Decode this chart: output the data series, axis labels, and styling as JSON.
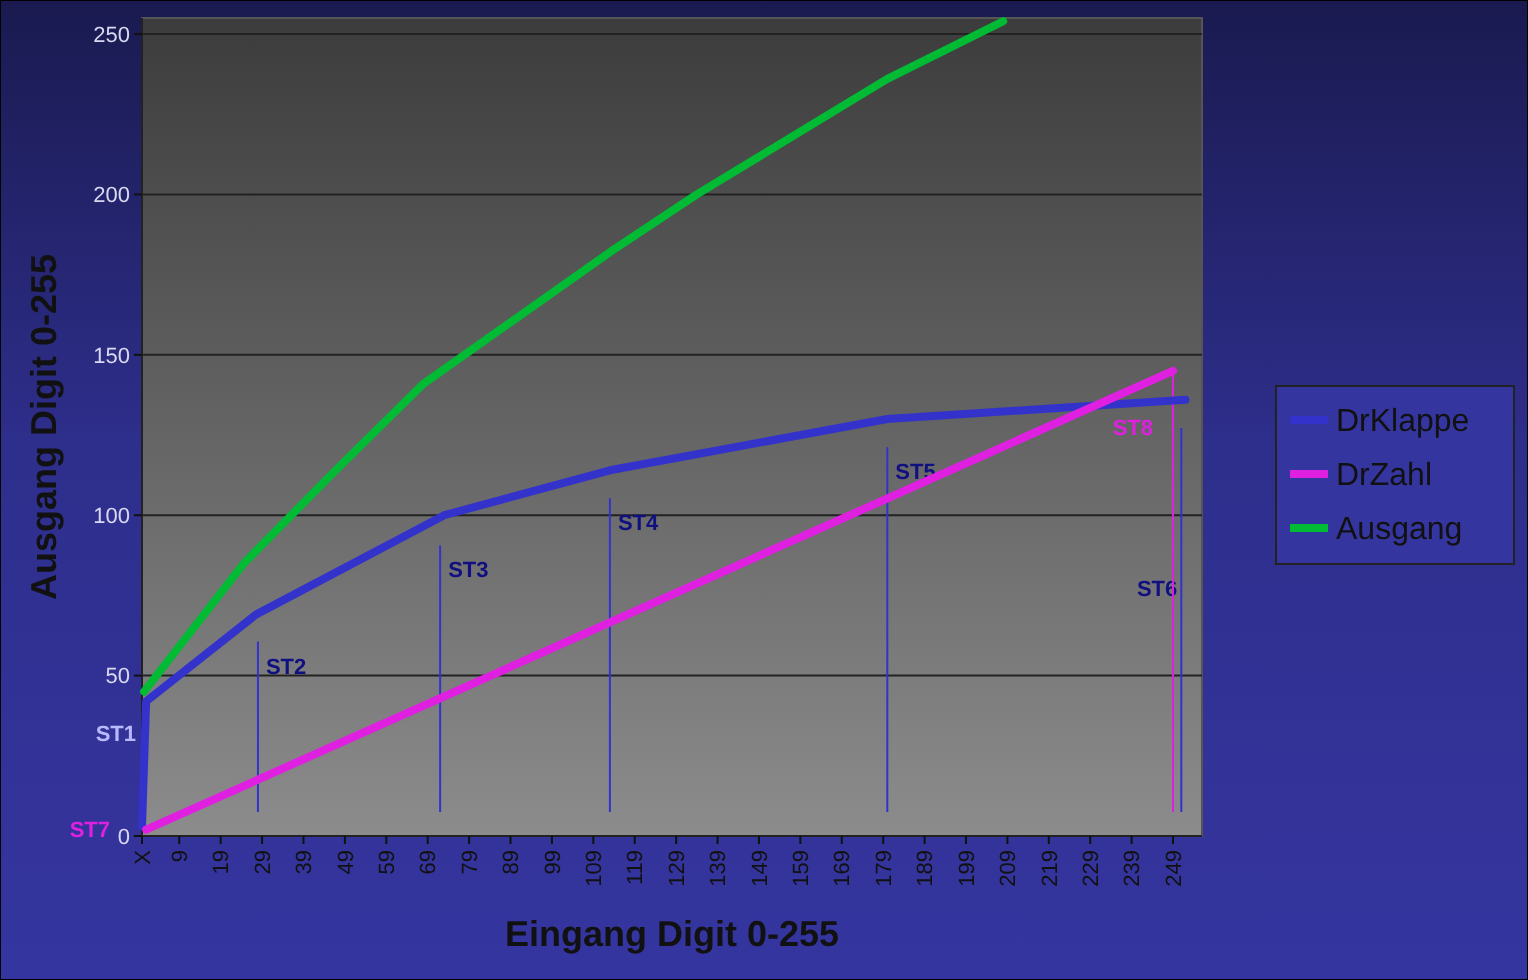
{
  "chart_data": {
    "type": "line",
    "xlabel": "Eingang Digit 0-255",
    "ylabel": "Ausgang Digit 0-255",
    "xlim": [
      0,
      256
    ],
    "ylim": [
      0,
      255
    ],
    "xticks": [
      {
        "value": 0,
        "label": "X"
      },
      9,
      19,
      29,
      39,
      49,
      59,
      69,
      79,
      89,
      99,
      109,
      119,
      129,
      139,
      149,
      159,
      169,
      179,
      189,
      199,
      209,
      219,
      229,
      239,
      249
    ],
    "yticks": [
      0,
      50,
      100,
      150,
      200,
      250
    ],
    "grid": "y",
    "legend": "right",
    "series": [
      {
        "name": "DrKlappe",
        "color": "#3333cc",
        "x": [
          0,
          1,
          27.5,
          73,
          113,
          180,
          252
        ],
        "values": [
          3,
          42,
          69,
          100,
          114,
          130,
          136
        ]
      },
      {
        "name": "DrZahl",
        "color": "#e020e0",
        "x": [
          1,
          249
        ],
        "values": [
          2,
          145
        ]
      },
      {
        "name": "Ausgang",
        "color": "#00bb33",
        "x": [
          0.5,
          24.6,
          46,
          68,
          113,
          134,
          180,
          208
        ],
        "values": [
          45,
          85,
          113,
          141,
          182,
          200,
          236,
          254
        ]
      }
    ],
    "ref_lines": [
      {
        "axis": "x",
        "value": 28,
        "label": "ST2",
        "color": "#3333cc"
      },
      {
        "axis": "x",
        "value": 72,
        "label": "ST3",
        "color": "#3333cc"
      },
      {
        "axis": "x",
        "value": 113,
        "label": "ST4",
        "color": "#3333cc"
      },
      {
        "axis": "x",
        "value": 180,
        "label": "ST5",
        "color": "#3333cc"
      },
      {
        "axis": "x",
        "value": 251,
        "label": "ST6",
        "color": "#3333cc"
      },
      {
        "axis": "x",
        "value": 249,
        "label": "ST8",
        "color": "#e020e0"
      }
    ],
    "annotations": [
      {
        "text": "ST1",
        "x": 0,
        "y": 32
      },
      {
        "text": "ST7",
        "x": 0,
        "y": 2
      }
    ]
  }
}
